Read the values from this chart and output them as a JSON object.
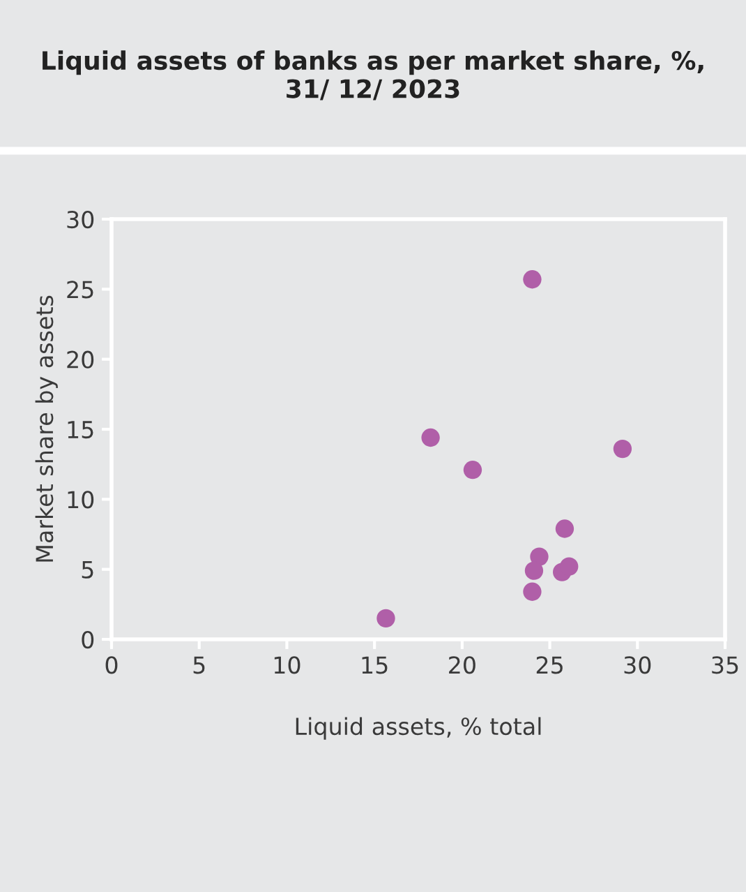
{
  "chart_data": {
    "type": "scatter",
    "title": "Liquid assets of banks as per market share, %,\n31/ 12/ 2023",
    "xlabel": "Liquid assets, % total",
    "ylabel": "Market share by assets",
    "series": [
      {
        "color": "#b05fa8",
        "x": [
          24.0,
          18.2,
          20.6,
          29.15,
          25.85,
          24.4,
          24.1,
          25.7,
          26.1,
          24.0,
          15.65
        ],
        "values": [
          25.7,
          14.4,
          12.1,
          13.6,
          7.9,
          5.9,
          4.9,
          4.8,
          5.2,
          3.4,
          1.5
        ]
      }
    ],
    "xlim": [
      0,
      35
    ],
    "xticks": [
      0,
      5,
      10,
      15,
      20,
      25,
      30,
      35
    ],
    "ylim": [
      0,
      30
    ],
    "yticks": [
      0,
      5,
      10,
      15,
      20,
      25,
      30
    ],
    "marker": "circle",
    "grid": false
  }
}
